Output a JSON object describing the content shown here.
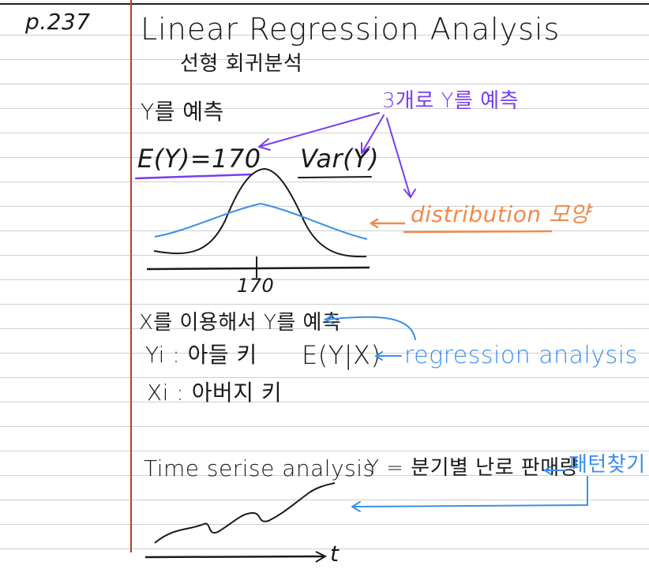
{
  "page_ref": "p.237",
  "title": "Linear Regression Analysis",
  "title_korean": "선형 회귀분석",
  "section1": {
    "predict_y": "Y를 예측",
    "expectation": "E(Y)=170",
    "variance": "Var(Y)",
    "three_ways_note": "3개로 Y를 예측",
    "distribution_note": "distribution 모양",
    "axis_tick": "170"
  },
  "section2": {
    "predict_with_x": "X를 이용해서 Y를 예측",
    "yi_label": "Yi : 아들 키",
    "conditional_expectation": "E(Y|X)",
    "regression_note": "regression analysis",
    "xi_label": "Xi : 아버지 키"
  },
  "section3": {
    "time_series": "Time serise analysis",
    "y_definition": "Y = 분기별 난로 판매량",
    "pattern_note": "패턴찾기",
    "time_axis": "t"
  },
  "colors": {
    "ink": "#1a1a1a",
    "purple": "#7a3cf0",
    "orange": "#f08a4b",
    "blue": "#3b8fe8",
    "margin": "#c0392b"
  }
}
